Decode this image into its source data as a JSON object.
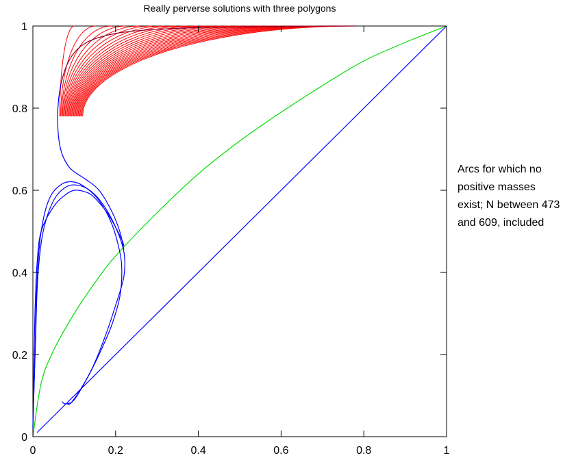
{
  "chart_data": {
    "type": "line",
    "title": "Really perverse solutions with three polygons",
    "annotation": "Arcs for which no positive masses exist; N between 473 and 609, included",
    "xlabel": "",
    "ylabel": "",
    "xlim": [
      0,
      1
    ],
    "ylim": [
      0,
      1
    ],
    "xticks": [
      "0",
      "0.2",
      "0.4",
      "0.6",
      "0.8",
      "1"
    ],
    "yticks": [
      "0",
      "0.2",
      "0.4",
      "0.6",
      "0.8",
      "1"
    ],
    "grid": false,
    "legend": "none",
    "colors": {
      "blue": "#0000ff",
      "green": "#00dd00",
      "red": "#ff0000",
      "dark_red": "#8b0030"
    },
    "series": [
      {
        "color": "blue",
        "x": [
          0.01,
          1.0
        ],
        "y": [
          0.01,
          1.0
        ]
      },
      {
        "color": "green",
        "x": [
          0.0,
          0.02,
          0.05,
          0.1,
          0.15,
          0.2,
          0.3,
          0.4,
          0.5,
          0.6,
          0.7,
          0.8,
          0.9,
          1.0
        ],
        "y": [
          0.0,
          0.13,
          0.21,
          0.3,
          0.375,
          0.44,
          0.545,
          0.64,
          0.72,
          0.79,
          0.855,
          0.915,
          0.96,
          1.0
        ]
      },
      {
        "color": "blue",
        "x": [
          0.0,
          0.005,
          0.01,
          0.02,
          0.04,
          0.07,
          0.1,
          0.13,
          0.16,
          0.19,
          0.21,
          0.215,
          0.21,
          0.19,
          0.16,
          0.13,
          0.1,
          0.08,
          0.07
        ],
        "y": [
          0.02,
          0.2,
          0.38,
          0.5,
          0.58,
          0.615,
          0.62,
          0.605,
          0.575,
          0.52,
          0.45,
          0.4,
          0.34,
          0.27,
          0.2,
          0.14,
          0.09,
          0.08,
          0.085
        ]
      },
      {
        "color": "blue",
        "x": [
          0.0,
          0.006,
          0.012,
          0.025,
          0.05,
          0.08,
          0.11,
          0.14,
          0.17,
          0.2,
          0.22,
          0.22,
          0.2,
          0.175,
          0.145,
          0.115,
          0.09,
          0.082
        ],
        "y": [
          0.025,
          0.22,
          0.39,
          0.5,
          0.575,
          0.608,
          0.612,
          0.598,
          0.565,
          0.51,
          0.45,
          0.39,
          0.32,
          0.245,
          0.17,
          0.115,
          0.08,
          0.082
        ]
      },
      {
        "color": "blue",
        "x": [
          0.0,
          0.002,
          0.005,
          0.01,
          0.02,
          0.05,
          0.08,
          0.1,
          0.12,
          0.14,
          0.16,
          0.18,
          0.2,
          0.215,
          0.22
        ],
        "y": [
          0.02,
          0.15,
          0.3,
          0.42,
          0.5,
          0.56,
          0.59,
          0.6,
          0.598,
          0.59,
          0.57,
          0.545,
          0.51,
          0.48,
          0.465
        ]
      },
      {
        "color": "blue",
        "x": [
          0.22,
          0.21,
          0.19,
          0.16,
          0.13,
          0.1,
          0.085,
          0.07,
          0.062,
          0.06,
          0.062,
          0.068
        ],
        "y": [
          0.455,
          0.5,
          0.55,
          0.6,
          0.625,
          0.645,
          0.66,
          0.69,
          0.73,
          0.78,
          0.82,
          0.86
        ]
      },
      {
        "color": "dark_red",
        "x": [
          0.068,
          0.08,
          0.1,
          0.13,
          0.17,
          0.22,
          0.3,
          0.4,
          0.5,
          0.6,
          0.7,
          0.78
        ],
        "y": [
          0.86,
          0.9,
          0.935,
          0.96,
          0.975,
          0.985,
          0.992,
          0.996,
          0.998,
          0.999,
          1.0,
          1.0
        ]
      }
    ],
    "arc_family": {
      "color": "red",
      "count": 26,
      "start_x": [
        0.065,
        0.12
      ],
      "start_y": 0.78,
      "end_x": [
        0.1,
        0.78
      ],
      "end_y": 1.0
    }
  }
}
